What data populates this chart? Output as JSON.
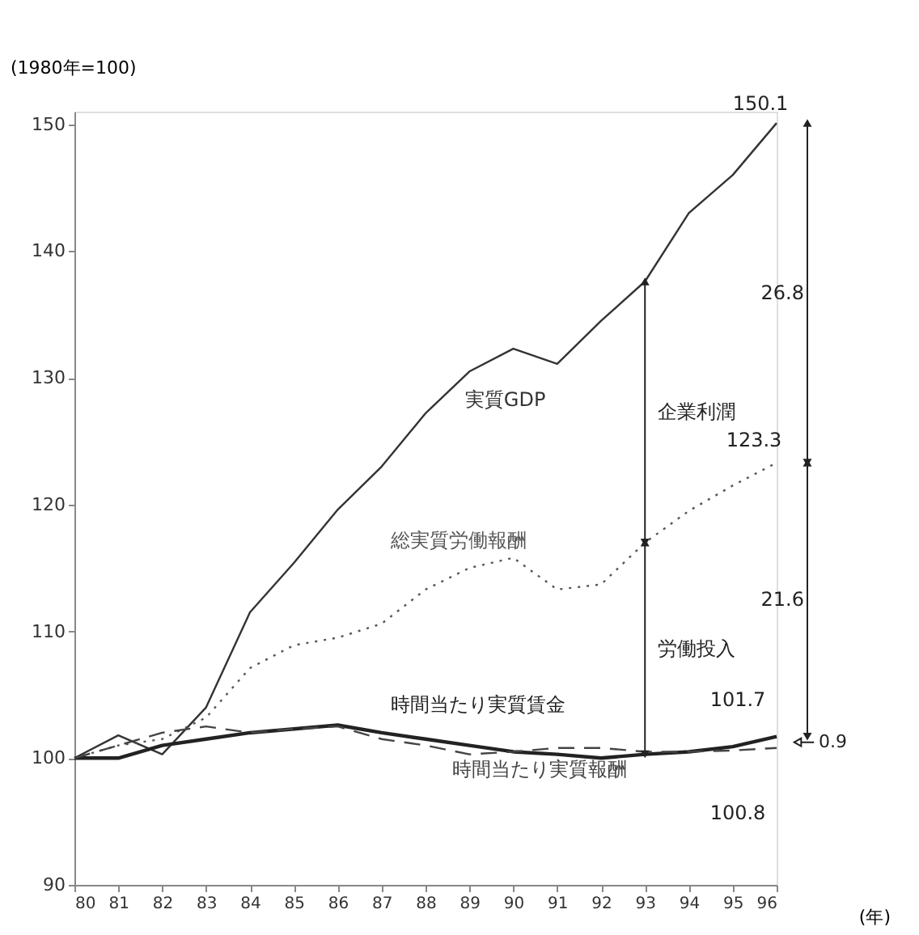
{
  "chart_data": {
    "type": "line",
    "ylabel": "(1980年=100)",
    "xlabel": "(年)",
    "x": [
      80,
      81,
      82,
      83,
      84,
      85,
      86,
      87,
      88,
      89,
      90,
      91,
      92,
      93,
      94,
      95,
      96
    ],
    "xlim": [
      80,
      96
    ],
    "xticks": [
      80,
      81,
      82,
      83,
      84,
      85,
      86,
      87,
      88,
      89,
      90,
      91,
      92,
      93,
      94,
      95,
      96
    ],
    "ylim": [
      90,
      151
    ],
    "yticks": [
      90,
      100,
      110,
      120,
      130,
      140,
      150
    ],
    "series": [
      {
        "name": "実質GDP",
        "color": "#333333",
        "line_style": "solid",
        "values": [
          100,
          101.8,
          100.3,
          104,
          111.5,
          115.4,
          119.6,
          123,
          127.2,
          130.5,
          132.3,
          131.1,
          134.5,
          137.6,
          143,
          146,
          150.1
        ],
        "value_labels": [
          null,
          null,
          null,
          null,
          null,
          null,
          null,
          null,
          null,
          null,
          null,
          null,
          null,
          null,
          null,
          null,
          "150.1"
        ]
      },
      {
        "name": "総実質労働報酬",
        "color": "#555555",
        "line_style": "dotted",
        "values": [
          100,
          101,
          101.5,
          103.2,
          107.1,
          108.9,
          109.5,
          110.6,
          113.3,
          115,
          115.8,
          113.3,
          113.7,
          117,
          119.5,
          121.5,
          123.3
        ],
        "value_labels": [
          null,
          null,
          null,
          null,
          null,
          null,
          null,
          null,
          null,
          null,
          null,
          null,
          null,
          null,
          null,
          null,
          "123.3"
        ]
      },
      {
        "name": "時間当たり実質賃金",
        "color": "#222222",
        "line_style": "solid",
        "values": [
          100,
          100,
          101,
          101.5,
          102,
          102.3,
          102.6,
          102,
          101.5,
          101,
          100.5,
          100.3,
          100,
          100.3,
          100.5,
          100.9,
          101.7
        ],
        "value_labels": [
          null,
          null,
          null,
          null,
          null,
          null,
          null,
          null,
          null,
          null,
          null,
          null,
          null,
          null,
          null,
          null,
          "101.7"
        ]
      },
      {
        "name": "時間当たり実質報酬",
        "color": "#444444",
        "line_style": "dashed",
        "values": [
          100,
          101,
          102,
          102.5,
          102,
          102.3,
          102.5,
          101.5,
          101,
          100.3,
          100.5,
          100.8,
          100.8,
          100.5,
          100.5,
          100.6,
          100.8
        ],
        "value_labels": [
          null,
          null,
          null,
          null,
          null,
          null,
          null,
          null,
          null,
          null,
          null,
          null,
          null,
          null,
          null,
          null,
          "100.8"
        ]
      }
    ],
    "annotations": [
      "26.8",
      "21.6",
      "企業利潤",
      "労働投入",
      "0.9"
    ],
    "legend": false,
    "grid": false,
    "marker": "none"
  }
}
